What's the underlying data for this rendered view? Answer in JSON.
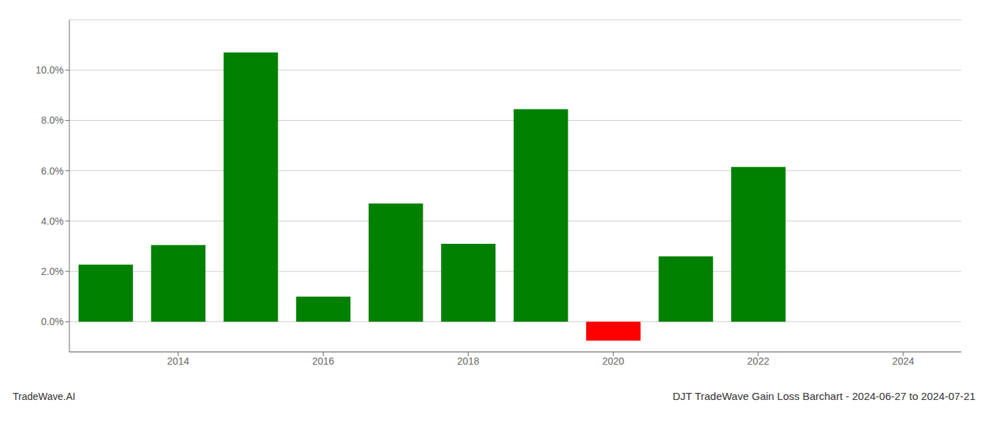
{
  "chart_data": {
    "type": "bar",
    "title": "DJT TradeWave Gain Loss Barchart - 2024-06-27 to 2024-07-21",
    "annotations": [
      "TradeWave.AI"
    ],
    "x": [
      2013,
      2014,
      2015,
      2016,
      2017,
      2018,
      2019,
      2020,
      2021,
      2022,
      2023
    ],
    "values": [
      2.27,
      3.05,
      10.7,
      1.0,
      4.7,
      3.1,
      8.45,
      -0.75,
      2.6,
      6.15,
      0.0
    ],
    "colors": [
      "#008000",
      "#008000",
      "#008000",
      "#008000",
      "#008000",
      "#008000",
      "#008000",
      "#ff0000",
      "#008000",
      "#008000",
      "#008000"
    ],
    "xlim": [
      2012.5,
      2024.8
    ],
    "xticks": [
      2014,
      2016,
      2018,
      2020,
      2022,
      2024
    ],
    "ylim": [
      -1.2,
      12.0
    ],
    "yticks": [
      {
        "value": 0.0,
        "label": "0.0%"
      },
      {
        "value": 2.0,
        "label": "2.0%"
      },
      {
        "value": 4.0,
        "label": "4.0%"
      },
      {
        "value": 6.0,
        "label": "6.0%"
      },
      {
        "value": 8.0,
        "label": "8.0%"
      },
      {
        "value": 10.0,
        "label": "10.0%"
      }
    ],
    "grid": "y"
  }
}
